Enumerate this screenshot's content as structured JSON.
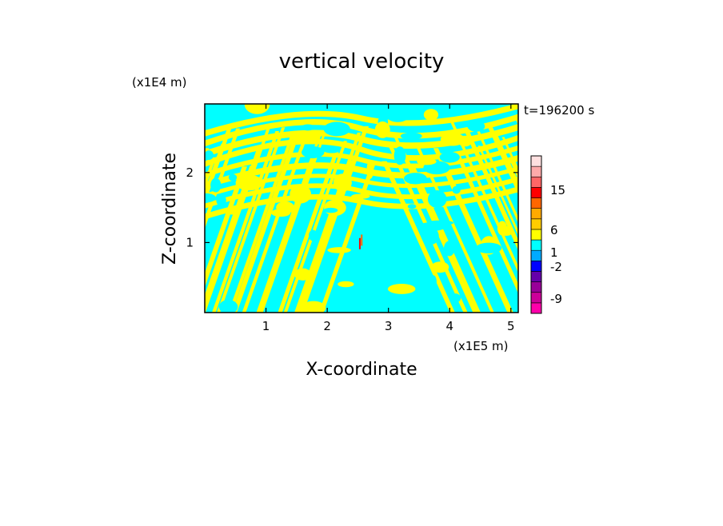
{
  "chart_data": {
    "type": "heatmap",
    "title": "vertical velocity",
    "xlabel": "X-coordinate",
    "ylabel": "Z-coordinate",
    "x_unit": "(x1E5 m)",
    "y_unit": "(x1E4 m)",
    "time_label": "t=196200 s",
    "xlim": [
      0,
      5.12
    ],
    "ylim": [
      0,
      2.98
    ],
    "x_ticks": [
      1,
      2,
      3,
      4,
      5
    ],
    "y_ticks": [
      1,
      2
    ],
    "colorbar": {
      "tick_labels": [
        "15",
        "6",
        "1",
        "-2",
        "-9"
      ],
      "colors": [
        "#ff00aa",
        "#cc0099",
        "#990099",
        "#6600aa",
        "#0000ff",
        "#00aaff",
        "#00ffff",
        "#ffff00",
        "#ffcc00",
        "#ffaa00",
        "#ff6600",
        "#ff0000",
        "#ff6666",
        "#ffaaaa",
        "#ffe0e0"
      ]
    },
    "field_colors": {
      "positive": "#ffff00",
      "negative": "#00ffff"
    }
  }
}
